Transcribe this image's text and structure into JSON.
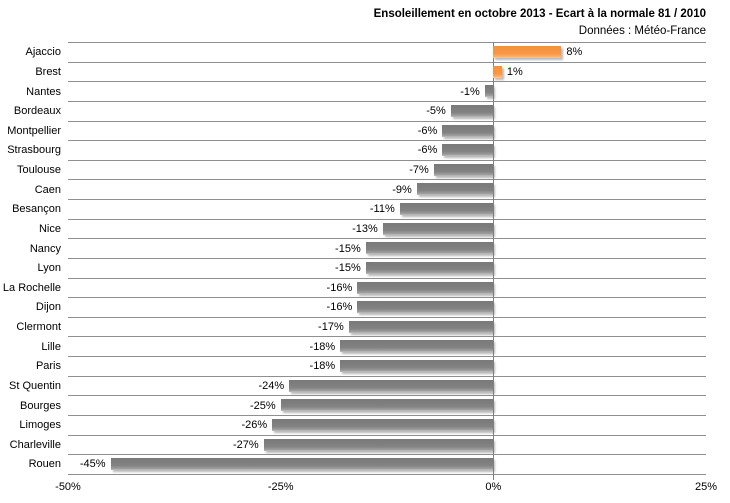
{
  "header": {
    "title": "Ensoleillement en octobre 2013 - Ecart à la normale 81 / 2010",
    "subtitle": "Données : Météo-France"
  },
  "chart_data": {
    "type": "bar",
    "orientation": "horizontal",
    "title": "Ensoleillement en octobre 2013 - Ecart à la normale 81 / 2010",
    "subtitle": "Données : Météo-France",
    "categories": [
      "Ajaccio",
      "Brest",
      "Nantes",
      "Bordeaux",
      "Montpellier",
      "Strasbourg",
      "Toulouse",
      "Caen",
      "Besançon",
      "Nice",
      "Nancy",
      "Lyon",
      "La Rochelle",
      "Dijon",
      "Clermont",
      "Lille",
      "Paris",
      "St Quentin",
      "Bourges",
      "Limoges",
      "Charleville",
      "Rouen"
    ],
    "values": [
      8,
      1,
      -1,
      -5,
      -6,
      -6,
      -7,
      -9,
      -11,
      -13,
      -15,
      -15,
      -16,
      -16,
      -17,
      -18,
      -18,
      -24,
      -25,
      -26,
      -27,
      -45
    ],
    "value_labels": [
      "8%",
      "1%",
      "-1%",
      "-5%",
      "-6%",
      "-6%",
      "-7%",
      "-9%",
      "-11%",
      "-13%",
      "-15%",
      "-15%",
      "-16%",
      "-16%",
      "-17%",
      "-18%",
      "-18%",
      "-24%",
      "-25%",
      "-26%",
      "-27%",
      "-45%"
    ],
    "xlim": [
      -50,
      25
    ],
    "x_ticks": [
      "-50%",
      "-25%",
      "0%",
      "25%"
    ],
    "x_tick_values": [
      -50,
      -25,
      0,
      25
    ],
    "grid": "category-separator-lines",
    "legend": "none",
    "colors": {
      "positive_bar": "#F79646",
      "negative_bar": "#808080",
      "gridline": "#8F8F8F",
      "zero_axis": "#808080",
      "text": "#000000",
      "background": "#FFFFFF"
    }
  }
}
